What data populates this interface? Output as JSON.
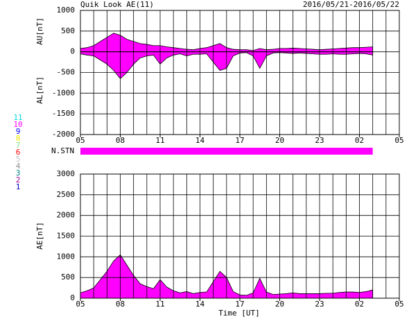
{
  "header": {
    "title": "Quik Look AE(11)",
    "date_range": "2016/05/21-2016/05/22"
  },
  "station_legend": {
    "labels": [
      11,
      10,
      9,
      8,
      7,
      6,
      5,
      4,
      3,
      2,
      1
    ],
    "colors": [
      "#00d8d8",
      "#ff00ff",
      "#0000ff",
      "#e8e800",
      "#80e080",
      "#ff0000",
      "#c0c0c0",
      "#909090",
      "#008080",
      "#a000a0",
      "#0000c0"
    ]
  },
  "station_bar": {
    "label": "N.STN",
    "color": "#ff00ff",
    "x": [
      0,
      22
    ]
  },
  "chart_data": [
    {
      "type": "area",
      "x": [
        0,
        0.5,
        1,
        1.5,
        2,
        2.5,
        3,
        3.5,
        4,
        4.5,
        5,
        5.5,
        6,
        6.5,
        7,
        7.5,
        8,
        8.5,
        9,
        9.5,
        10,
        10.5,
        11,
        11.5,
        12,
        12.5,
        13,
        13.5,
        14,
        14.5,
        15,
        15.5,
        16,
        16.5,
        17,
        17.5,
        18,
        18.5,
        19,
        19.5,
        20,
        20.5,
        21,
        21.5,
        22
      ],
      "series": [
        {
          "name": "AU[nT]",
          "color": "#ff00ff",
          "values": [
            80,
            100,
            150,
            250,
            350,
            450,
            400,
            300,
            250,
            200,
            180,
            150,
            150,
            120,
            100,
            80,
            60,
            50,
            80,
            100,
            150,
            200,
            100,
            60,
            50,
            50,
            30,
            80,
            50,
            60,
            80,
            80,
            90,
            80,
            70,
            60,
            50,
            60,
            70,
            80,
            90,
            100,
            100,
            110,
            120
          ]
        },
        {
          "name": "AL[nT]",
          "color": "#ff00ff",
          "values": [
            -50,
            -80,
            -100,
            -200,
            -300,
            -450,
            -650,
            -500,
            -300,
            -150,
            -100,
            -80,
            -300,
            -150,
            -80,
            -50,
            -100,
            -60,
            -60,
            -50,
            -250,
            -450,
            -400,
            -100,
            -30,
            -20,
            -100,
            -400,
            -100,
            -30,
            -20,
            -30,
            -40,
            -30,
            -40,
            -50,
            -60,
            -60,
            -50,
            -60,
            -60,
            -50,
            -40,
            -50,
            -80
          ]
        }
      ],
      "xlim": [
        0,
        24
      ],
      "xticks": [
        {
          "value": 0,
          "label": "05"
        },
        {
          "value": 3,
          "label": "08"
        },
        {
          "value": 6,
          "label": "11"
        },
        {
          "value": 9,
          "label": "14"
        },
        {
          "value": 12,
          "label": "17"
        },
        {
          "value": 15,
          "label": "20"
        },
        {
          "value": 18,
          "label": "23"
        },
        {
          "value": 21,
          "label": "02"
        },
        {
          "value": 24,
          "label": "05"
        }
      ],
      "xgrid_step": 1,
      "ylim": [
        -2000,
        1000
      ],
      "yticks": [
        -2000,
        -1500,
        -1000,
        -500,
        0,
        500,
        1000
      ],
      "grid": true
    },
    {
      "type": "area",
      "x": [
        0,
        0.5,
        1,
        1.5,
        2,
        2.5,
        3,
        3.5,
        4,
        4.5,
        5,
        5.5,
        6,
        6.5,
        7,
        7.5,
        8,
        8.5,
        9,
        9.5,
        10,
        10.5,
        11,
        11.5,
        12,
        12.5,
        13,
        13.5,
        14,
        14.5,
        15,
        15.5,
        16,
        16.5,
        17,
        17.5,
        18,
        18.5,
        19,
        19.5,
        20,
        20.5,
        21,
        21.5,
        22
      ],
      "series": [
        {
          "name": "AE[nT]",
          "color": "#ff00ff",
          "values": [
            130,
            180,
            250,
            450,
            650,
            900,
            1050,
            800,
            550,
            350,
            280,
            230,
            450,
            270,
            180,
            130,
            160,
            110,
            140,
            150,
            400,
            650,
            500,
            160,
            80,
            70,
            130,
            480,
            150,
            90,
            100,
            110,
            130,
            110,
            110,
            110,
            110,
            120,
            120,
            140,
            150,
            150,
            140,
            160,
            200
          ]
        }
      ],
      "x_label": "Time [UT]",
      "xlim": [
        0,
        24
      ],
      "xticks": [
        {
          "value": 0,
          "label": "05"
        },
        {
          "value": 3,
          "label": "08"
        },
        {
          "value": 6,
          "label": "11"
        },
        {
          "value": 9,
          "label": "14"
        },
        {
          "value": 12,
          "label": "17"
        },
        {
          "value": 15,
          "label": "20"
        },
        {
          "value": 18,
          "label": "23"
        },
        {
          "value": 21,
          "label": "02"
        },
        {
          "value": 24,
          "label": "05"
        }
      ],
      "xgrid_step": 1,
      "ylim": [
        0,
        3000
      ],
      "yticks": [
        0,
        500,
        1000,
        1500,
        2000,
        2500,
        3000
      ],
      "grid": true
    }
  ]
}
